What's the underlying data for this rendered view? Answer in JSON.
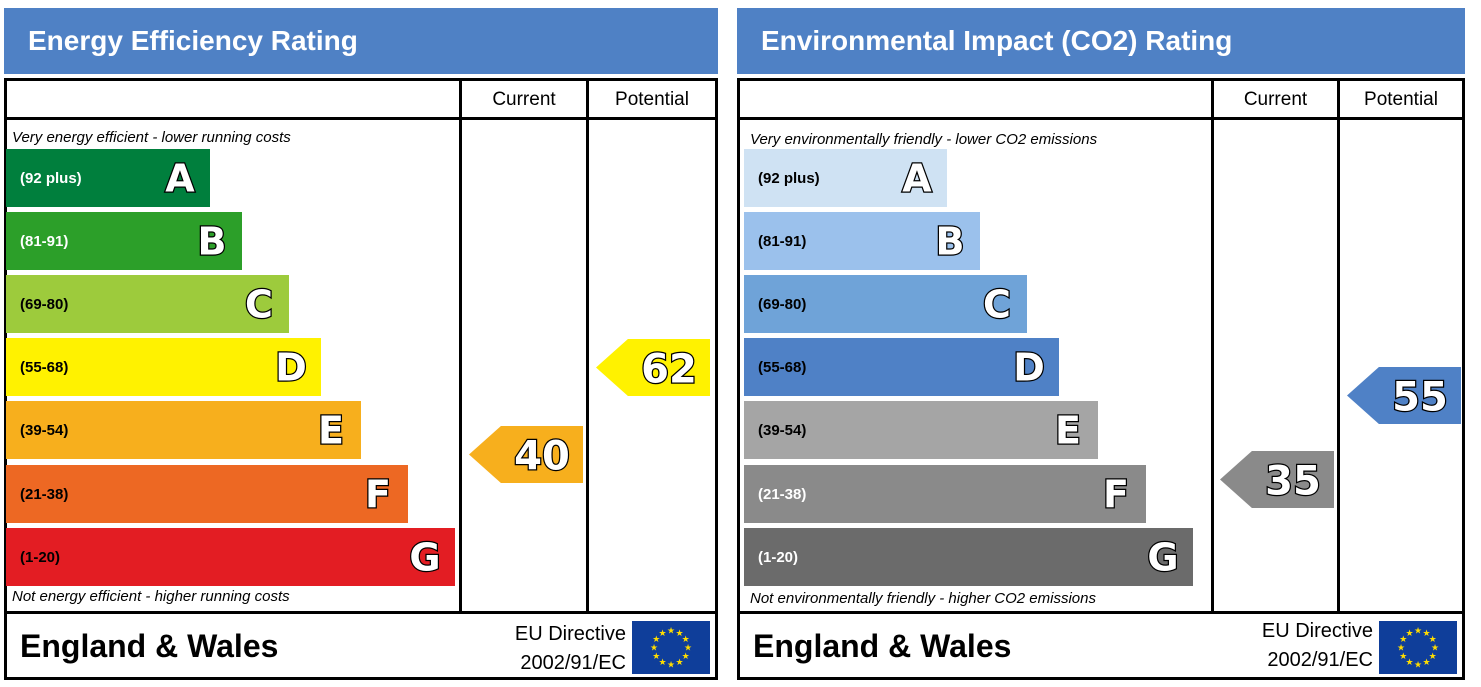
{
  "panels": [
    {
      "title": "Energy Efficiency Rating",
      "columns": [
        "Current",
        "Potential"
      ],
      "top_note": "Very energy efficient - lower running costs",
      "bottom_note": "Not energy efficient - higher running costs",
      "footer": {
        "region": "England & Wales",
        "directive_line1": "EU Directive",
        "directive_line2": "2002/91/EC"
      },
      "bands": [
        {
          "letter": "A",
          "range": "(92 plus)",
          "color": "#007f3d",
          "range_text_color": "#ffffff"
        },
        {
          "letter": "B",
          "range": "(81-91)",
          "color": "#2c9f29",
          "range_text_color": "#ffffff"
        },
        {
          "letter": "C",
          "range": "(69-80)",
          "color": "#9dcb3c",
          "range_text_color": "#000000"
        },
        {
          "letter": "D",
          "range": "(55-68)",
          "color": "#fff200",
          "range_text_color": "#000000"
        },
        {
          "letter": "E",
          "range": "(39-54)",
          "color": "#f7af1d",
          "range_text_color": "#000000"
        },
        {
          "letter": "F",
          "range": "(21-38)",
          "color": "#ed6823",
          "range_text_color": "#000000"
        },
        {
          "letter": "G",
          "range": "(1-20)",
          "color": "#e31d23",
          "range_text_color": "#000000"
        }
      ],
      "current": {
        "value": "40",
        "band": "E",
        "color": "#f7af1d"
      },
      "potential": {
        "value": "62",
        "band": "D",
        "color": "#fff200"
      }
    },
    {
      "title": "Environmental Impact (CO2) Rating",
      "columns": [
        "Current",
        "Potential"
      ],
      "top_note": "Very environmentally friendly - lower CO2 emissions",
      "bottom_note": "Not environmentally friendly - higher CO2 emissions",
      "footer": {
        "region": "England & Wales",
        "directive_line1": "EU Directive",
        "directive_line2": "2002/91/EC"
      },
      "bands": [
        {
          "letter": "A",
          "range": "(92 plus)",
          "color": "#cfe2f3",
          "range_text_color": "#000000"
        },
        {
          "letter": "B",
          "range": "(81-91)",
          "color": "#9bc1ec",
          "range_text_color": "#000000"
        },
        {
          "letter": "C",
          "range": "(69-80)",
          "color": "#6fa3d8",
          "range_text_color": "#000000"
        },
        {
          "letter": "D",
          "range": "(55-68)",
          "color": "#4f81c6",
          "range_text_color": "#000000"
        },
        {
          "letter": "E",
          "range": "(39-54)",
          "color": "#a5a5a5",
          "range_text_color": "#000000"
        },
        {
          "letter": "F",
          "range": "(21-38)",
          "color": "#8a8a8a",
          "range_text_color": "#ffffff"
        },
        {
          "letter": "G",
          "range": "(1-20)",
          "color": "#6b6b6b",
          "range_text_color": "#ffffff"
        }
      ],
      "current": {
        "value": "35",
        "band": "F",
        "color": "#8a8a8a"
      },
      "potential": {
        "value": "55",
        "band": "D",
        "color": "#4f81c6"
      }
    }
  ],
  "chart_data": {
    "type": "bar",
    "categories": [
      "A",
      "B",
      "C",
      "D",
      "E",
      "F",
      "G"
    ],
    "series": [
      {
        "name": "Energy Efficiency Rating",
        "current": 40,
        "potential": 62
      },
      {
        "name": "Environmental Impact (CO2) Rating",
        "current": 35,
        "potential": 55
      }
    ]
  }
}
